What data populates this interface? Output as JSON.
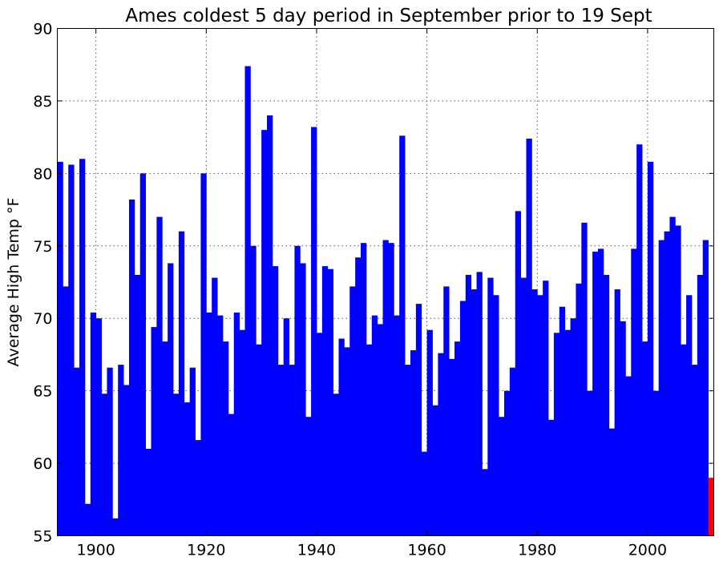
{
  "chart_data": {
    "type": "bar",
    "title": "Ames coldest 5 day period in September prior to 19 Sept",
    "xlabel": "",
    "ylabel": "Average High Temp °F",
    "xlim": [
      1893,
      2011
    ],
    "ylim": [
      55,
      90
    ],
    "xticks": [
      1900,
      1920,
      1940,
      1960,
      1980,
      2000
    ],
    "yticks": [
      55,
      60,
      65,
      70,
      75,
      80,
      85,
      90
    ],
    "grid": true,
    "series_colors": {
      "default": "#0000ff",
      "highlight": "#ff0000"
    },
    "highlight_year": 2011,
    "years": [
      1893,
      1894,
      1895,
      1896,
      1897,
      1898,
      1899,
      1900,
      1901,
      1902,
      1903,
      1904,
      1905,
      1906,
      1907,
      1908,
      1909,
      1910,
      1911,
      1912,
      1913,
      1914,
      1915,
      1916,
      1917,
      1918,
      1919,
      1920,
      1921,
      1922,
      1923,
      1924,
      1925,
      1926,
      1927,
      1928,
      1929,
      1930,
      1931,
      1932,
      1933,
      1934,
      1935,
      1936,
      1937,
      1938,
      1939,
      1940,
      1941,
      1942,
      1943,
      1944,
      1945,
      1946,
      1947,
      1948,
      1949,
      1950,
      1951,
      1952,
      1953,
      1954,
      1955,
      1956,
      1957,
      1958,
      1959,
      1960,
      1961,
      1962,
      1963,
      1964,
      1965,
      1966,
      1967,
      1968,
      1969,
      1970,
      1971,
      1972,
      1973,
      1974,
      1975,
      1976,
      1977,
      1978,
      1979,
      1980,
      1981,
      1982,
      1983,
      1984,
      1985,
      1986,
      1987,
      1988,
      1989,
      1990,
      1991,
      1992,
      1993,
      1994,
      1995,
      1996,
      1997,
      1998,
      1999,
      2000,
      2001,
      2002,
      2003,
      2004,
      2005,
      2006,
      2007,
      2008,
      2009,
      2010,
      2011
    ],
    "values": [
      80.8,
      72.2,
      80.6,
      66.6,
      81.0,
      57.2,
      70.4,
      70.0,
      64.8,
      66.6,
      56.2,
      66.8,
      65.4,
      78.2,
      73.0,
      80.0,
      61.0,
      69.4,
      77.0,
      68.4,
      73.8,
      64.8,
      76.0,
      64.2,
      66.6,
      61.6,
      80.0,
      70.4,
      72.8,
      70.2,
      68.4,
      63.4,
      70.4,
      69.2,
      87.4,
      75.0,
      68.2,
      83.0,
      84.0,
      73.6,
      66.8,
      70.0,
      66.8,
      75.0,
      73.8,
      63.2,
      83.2,
      69.0,
      73.6,
      73.4,
      64.8,
      68.6,
      68.0,
      72.2,
      74.2,
      75.2,
      68.2,
      70.2,
      69.6,
      75.4,
      75.2,
      70.2,
      82.6,
      66.8,
      67.8,
      71.0,
      60.8,
      69.2,
      64.0,
      67.6,
      72.2,
      67.2,
      68.4,
      71.2,
      73.0,
      72.0,
      73.2,
      59.6,
      72.8,
      71.6,
      63.2,
      65.0,
      66.6,
      77.4,
      72.8,
      82.4,
      72.0,
      71.6,
      72.6,
      63.0,
      69.0,
      70.8,
      69.2,
      70.0,
      72.4,
      76.6,
      65.0,
      74.6,
      74.8,
      73.0,
      62.4,
      72.0,
      69.8,
      66.0,
      74.8,
      82.0,
      68.4,
      80.8,
      65.0,
      75.4,
      76.0,
      77.0,
      76.4,
      68.2,
      71.6,
      66.8,
      73.0,
      75.4,
      59.0
    ]
  }
}
